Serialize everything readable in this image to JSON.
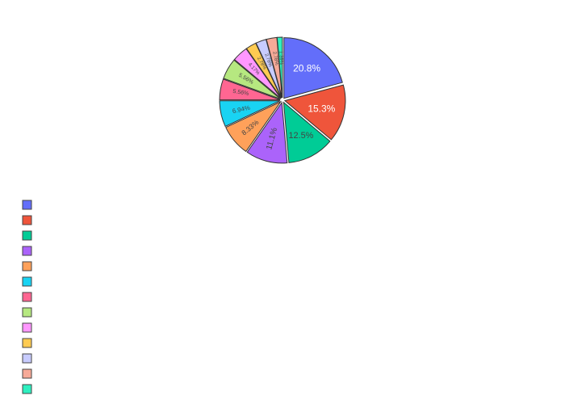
{
  "chart_data": {
    "type": "pie",
    "title": "",
    "legend_position": "left-bottom",
    "legend_labels": [],
    "slices": [
      {
        "value": 20.8,
        "label": "20.8%",
        "color": "#636efa"
      },
      {
        "value": 15.3,
        "label": "15.3%",
        "color": "#ef553b"
      },
      {
        "value": 12.5,
        "label": "12.5%",
        "color": "#00cc96"
      },
      {
        "value": 11.1,
        "label": "11.1%",
        "color": "#ab63fa"
      },
      {
        "value": 8.33,
        "label": "8.33%",
        "color": "#ffa15a"
      },
      {
        "value": 6.94,
        "label": "6.94%",
        "color": "#19d3f3"
      },
      {
        "value": 5.56,
        "label": "5.56%",
        "color": "#ff6692"
      },
      {
        "value": 5.56,
        "label": "5.56%",
        "color": "#b6e880"
      },
      {
        "value": 4.17,
        "label": "4.17%",
        "color": "#ff97ff"
      },
      {
        "value": 2.78,
        "label": "2.78%",
        "color": "#fecb52"
      },
      {
        "value": 2.78,
        "label": "2.78%",
        "color": "#c8ccff"
      },
      {
        "value": 2.78,
        "label": "2.78%",
        "color": "#f7aa98"
      },
      {
        "value": 1.39,
        "label": "1.39%",
        "color": "#2ef0c0"
      }
    ]
  }
}
